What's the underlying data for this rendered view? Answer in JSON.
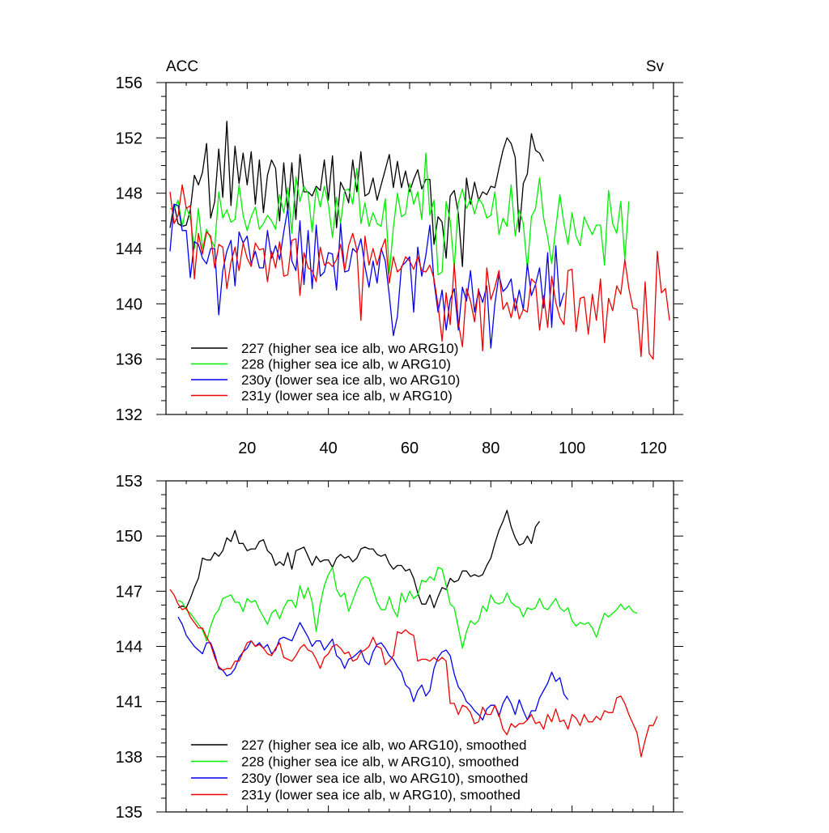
{
  "chart_data": [
    {
      "type": "line",
      "title": "",
      "left_label": "ACC",
      "right_label": "Sv",
      "xlabel": "",
      "ylabel": "",
      "xlim": [
        0,
        125
      ],
      "ylim": [
        132,
        156
      ],
      "xticks": [
        20,
        40,
        60,
        80,
        100,
        120
      ],
      "xtick_labels": [
        "20",
        "40",
        "60",
        "80",
        "100",
        "120"
      ],
      "yticks": [
        132,
        136,
        140,
        144,
        148,
        152,
        156
      ],
      "ytick_labels": [
        "132",
        "136",
        "140",
        "144",
        "148",
        "152",
        "156"
      ],
      "grid": false,
      "legend_position": "bottom-left",
      "series": [
        {
          "name": "227 (higher sea ice alb, wo ARG10)",
          "color": "#000000",
          "x_start": 1,
          "values": [
            145.5,
            147.2,
            145.8,
            145.6,
            145.7,
            146.8,
            149.3,
            148.6,
            149.5,
            151.6,
            146.2,
            147.4,
            151.2,
            147.7,
            153.2,
            147.1,
            151.4,
            148.7,
            150.9,
            148.6,
            151.0,
            147.2,
            150.4,
            146.6,
            149.3,
            150.4,
            149.8,
            146.0,
            150.2,
            146.7,
            150.2,
            146.1,
            150.8,
            148.1,
            148.1,
            147.8,
            148.5,
            148.2,
            150.4,
            147.5,
            150.7,
            145.5,
            148.8,
            148.2,
            147.3,
            150.4,
            148.1,
            151.0,
            147.8,
            148.0,
            149.1,
            147.5,
            148.6,
            149.7,
            150.8,
            148.4,
            150.3,
            148.4,
            149.6,
            148.1,
            149.0,
            149.7,
            148.3,
            149.0,
            149.0,
            144.3,
            146.3,
            145.9,
            143.3,
            147.8,
            148.2,
            146.5,
            142.7,
            149.1,
            147.2,
            148.8,
            147.5,
            148.1,
            147.9,
            148.5,
            148.4,
            149.8,
            151.1,
            152.0,
            151.6,
            150.6,
            145.2,
            148.7,
            149.4,
            152.3,
            151.1,
            150.9,
            150.3
          ]
        },
        {
          "name": "228 (higher sea ice alb, w ARG10)",
          "color": "#00ee00",
          "x_start": 1,
          "values": [
            146.9,
            146.8,
            147.5,
            145.6,
            147.0,
            146.2,
            144.0,
            146.9,
            144.0,
            145.4,
            144.7,
            144.1,
            148.1,
            146.2,
            146.8,
            145.9,
            146.1,
            148.6,
            146.4,
            145.3,
            146.3,
            147.0,
            145.4,
            145.8,
            146.4,
            146.0,
            145.4,
            147.9,
            146.6,
            148.4,
            145.1,
            149.2,
            147.4,
            148.5,
            148.0,
            145.2,
            148.4,
            147.0,
            148.5,
            147.2,
            144.8,
            147.7,
            145.8,
            148.2,
            148.3,
            147.2,
            149.8,
            145.8,
            147.3,
            145.6,
            146.6,
            145.8,
            145.6,
            147.6,
            142.2,
            145.5,
            148.0,
            146.3,
            146.5,
            148.7,
            147.2,
            148.1,
            146.1,
            150.9,
            146.4,
            147.5,
            142.1,
            142.3,
            147.4,
            146.0,
            142.6,
            147.3,
            148.3,
            146.9,
            147.6,
            146.5,
            147.6,
            147.2,
            146.2,
            146.4,
            148.1,
            145.0,
            146.2,
            145.6,
            148.6,
            144.9,
            146.8,
            145.8,
            142.5,
            146.3,
            146.9,
            149.1,
            146.2,
            144.8,
            142.9,
            145.5,
            147.9,
            145.8,
            144.3,
            146.6,
            144.9,
            144.2,
            146.3,
            145.6,
            145.0,
            145.7,
            145.7,
            142.8,
            148.2,
            145.8,
            145.1,
            147.4,
            143.2,
            147.4
          ]
        },
        {
          "name": "230y (lower sea ice alb, wo ARG10)",
          "color": "#0000ee",
          "x_start": 1,
          "values": [
            143.8,
            147.2,
            147.1,
            145.3,
            145.3,
            141.9,
            144.5,
            144.3,
            143.3,
            142.9,
            144.0,
            144.0,
            139.2,
            142.4,
            143.8,
            144.6,
            141.3,
            145.2,
            144.4,
            144.9,
            142.9,
            143.8,
            142.6,
            142.6,
            145.3,
            143.3,
            144.2,
            143.2,
            145.2,
            146.9,
            143.1,
            142.4,
            146.0,
            141.4,
            145.3,
            141.1,
            145.7,
            142.0,
            142.3,
            143.7,
            143.6,
            141.0,
            145.8,
            142.3,
            142.4,
            144.0,
            143.7,
            144.7,
            142.7,
            141.2,
            143.1,
            141.5,
            144.0,
            143.1,
            140.6,
            137.7,
            139.1,
            142.7,
            143.0,
            143.4,
            139.4,
            144.1,
            142.0,
            143.5,
            145.7,
            141.6,
            139.4,
            141.0,
            138.1,
            140.3,
            141.1,
            138.1,
            141.2,
            140.2,
            142.4,
            139.4,
            141.0,
            140.1,
            141.3,
            136.8,
            140.0,
            142.1,
            140.9,
            141.2,
            141.8,
            139.5,
            141.0,
            139.6,
            142.9,
            140.6,
            141.4,
            142.6,
            139.7,
            143.7,
            138.3,
            144.2,
            139.8,
            140.8
          ]
        },
        {
          "name": "231y (lower sea ice alb, w ARG10)",
          "color": "#ee0000",
          "x_start": 1,
          "values": [
            148.1,
            145.8,
            146.4,
            148.6,
            146.9,
            147.1,
            141.8,
            145.1,
            143.6,
            145.2,
            144.9,
            142.6,
            144.3,
            144.1,
            141.1,
            143.0,
            144.1,
            142.4,
            144.4,
            143.3,
            142.7,
            144.4,
            143.9,
            144.0,
            141.6,
            143.8,
            142.6,
            144.5,
            142.0,
            142.1,
            144.6,
            144.7,
            140.6,
            143.7,
            142.6,
            142.4,
            141.6,
            144.1,
            142.8,
            143.0,
            142.7,
            143.2,
            144.3,
            142.4,
            144.2,
            145.1,
            143.9,
            138.8,
            144.9,
            142.8,
            144.0,
            142.8,
            143.9,
            144.7,
            141.5,
            143.4,
            142.3,
            142.6,
            143.4,
            143.1,
            142.5,
            143.4,
            142.4,
            142.3,
            142.8,
            141.8,
            139.9,
            137.3,
            140.8,
            138.5,
            142.9,
            138.6,
            136.9,
            141.1,
            140.2,
            138.7,
            141.1,
            136.6,
            142.6,
            140.3,
            141.2,
            142.4,
            139.6,
            140.1,
            139.0,
            140.4,
            138.9,
            139.6,
            139.4,
            141.8,
            141.5,
            138.1,
            140.6,
            138.3,
            142.0,
            140.1,
            139.0,
            138.5,
            142.4,
            142.5,
            138.0,
            140.4,
            140.5,
            137.8,
            140.7,
            138.8,
            141.8,
            137.2,
            140.4,
            139.5,
            141.3,
            140.7,
            143.2,
            141.1,
            139.7,
            139.6,
            136.2,
            141.6,
            136.4,
            136.0,
            143.8,
            140.8,
            141.1,
            138.8
          ]
        }
      ]
    },
    {
      "type": "line",
      "title": "",
      "xlabel": "",
      "ylabel": "",
      "xlim": [
        0,
        125
      ],
      "ylim": [
        135,
        153
      ],
      "xticks": [
        20,
        40,
        60,
        80,
        100,
        120
      ],
      "yticks": [
        135,
        138,
        141,
        144,
        147,
        150,
        153
      ],
      "ytick_labels": [
        "135",
        "138",
        "141",
        "144",
        "147",
        "150",
        "153"
      ],
      "grid": false,
      "legend_position": "bottom-left",
      "series": [
        {
          "name": "227 (higher sea ice alb, wo ARG10), smoothed",
          "color": "#000000",
          "x_start": 3,
          "values": [
            146.1,
            146.2,
            146.1,
            146.6,
            147.2,
            147.7,
            148.8,
            148.7,
            148.7,
            149.1,
            148.9,
            149.2,
            149.9,
            149.7,
            150.3,
            149.6,
            149.6,
            149.2,
            149.3,
            149.3,
            149.7,
            149.8,
            149.2,
            149.0,
            148.4,
            148.6,
            148.4,
            149.1,
            148.2,
            149.2,
            149.3,
            149.4,
            148.9,
            148.4,
            148.9,
            148.6,
            148.7,
            148.7,
            148.3,
            148.8,
            149.0,
            148.8,
            148.9,
            148.6,
            148.8,
            149.3,
            149.4,
            149.3,
            149.3,
            149.0,
            148.9,
            149.0,
            148.5,
            148.2,
            148.4,
            148.4,
            148.1,
            148.2,
            147.7,
            146.9,
            146.3,
            146.3,
            146.8,
            146.1,
            146.7,
            147.2,
            147.1,
            147.7,
            147.5,
            147.6,
            148.1,
            148.1,
            147.8,
            147.9,
            147.8,
            147.9,
            148.4,
            148.8,
            149.6,
            150.3,
            150.8,
            151.4,
            150.5,
            149.9,
            149.5,
            149.6,
            150.0,
            149.6,
            150.5,
            150.8
          ]
        },
        {
          "name": "228 (higher sea ice alb, w ARG10), smoothed",
          "color": "#00ee00",
          "x_start": 3,
          "values": [
            146.5,
            146.4,
            146.0,
            145.8,
            145.5,
            145.2,
            144.9,
            144.3,
            145.1,
            145.7,
            146.0,
            146.6,
            146.7,
            146.8,
            146.4,
            146.4,
            145.9,
            146.6,
            146.4,
            146.5,
            146.0,
            145.6,
            145.2,
            145.8,
            146.0,
            145.5,
            146.1,
            146.5,
            146.5,
            146.1,
            147.3,
            146.6,
            147.2,
            146.4,
            144.8,
            146.3,
            147.3,
            147.9,
            148.3,
            147.1,
            146.7,
            146.9,
            145.9,
            146.5,
            147.1,
            147.6,
            147.8,
            147.7,
            147.1,
            146.4,
            146.0,
            146.0,
            146.7,
            146.0,
            145.6,
            146.9,
            146.4,
            147.0,
            146.6,
            146.8,
            147.6,
            147.5,
            147.8,
            147.6,
            148.3,
            148.2,
            147.3,
            146.3,
            146.1,
            145.0,
            143.9,
            144.8,
            145.4,
            145.2,
            145.4,
            146.2,
            145.9,
            146.8,
            146.4,
            146.3,
            146.4,
            146.9,
            146.4,
            146.2,
            146.1,
            145.6,
            146.1,
            146.0,
            146.1,
            146.6,
            146.1,
            146.0,
            146.3,
            146.6,
            146.1,
            145.9,
            146.1,
            145.4,
            145.1,
            145.3,
            145.2,
            145.3,
            145.0,
            144.5,
            145.2,
            145.8,
            145.6,
            145.8,
            146.0,
            146.3,
            146.0,
            146.2,
            145.9,
            145.8
          ]
        },
        {
          "name": "230y (lower sea ice alb, wo ARG10), smoothed",
          "color": "#0000ee",
          "x_start": 3,
          "values": [
            145.6,
            145.2,
            144.6,
            144.3,
            144.0,
            143.8,
            143.6,
            144.2,
            144.2,
            143.6,
            142.8,
            142.7,
            142.4,
            142.5,
            142.8,
            143.4,
            143.7,
            143.9,
            144.3,
            144.0,
            144.2,
            143.9,
            144.1,
            143.6,
            143.8,
            144.4,
            144.5,
            144.4,
            144.3,
            144.8,
            145.3,
            144.9,
            144.5,
            144.0,
            144.3,
            144.3,
            143.8,
            144.1,
            144.4,
            143.5,
            143.3,
            142.8,
            143.3,
            143.4,
            143.6,
            143.8,
            143.2,
            143.0,
            143.7,
            144.1,
            144.2,
            143.9,
            143.5,
            143.3,
            142.9,
            142.6,
            141.9,
            141.7,
            141.0,
            141.6,
            141.9,
            141.3,
            141.6,
            142.8,
            143.4,
            143.7,
            143.8,
            143.5,
            142.5,
            141.8,
            141.5,
            141.0,
            140.8,
            140.5,
            140.3,
            140.0,
            140.6,
            140.8,
            140.8,
            140.2,
            140.9,
            141.3,
            140.9,
            140.3,
            141.1,
            140.5,
            140.0,
            140.5,
            140.5,
            141.2,
            141.6,
            142.0,
            142.6,
            142.1,
            142.3,
            141.4,
            141.1
          ]
        },
        {
          "name": "231y (lower sea ice alb, w ARG10), smoothed",
          "color": "#ee0000",
          "x_start": 1,
          "values": [
            147.1,
            146.8,
            146.3,
            146.0,
            146.1,
            145.6,
            145.3,
            145.0,
            145.0,
            144.5,
            144.1,
            143.4,
            142.9,
            142.7,
            142.8,
            142.8,
            143.2,
            143.2,
            143.7,
            144.2,
            144.3,
            144.0,
            144.1,
            143.9,
            143.6,
            143.5,
            143.9,
            144.2,
            143.4,
            143.3,
            143.2,
            143.5,
            143.9,
            144.1,
            143.8,
            143.7,
            143.3,
            142.8,
            143.4,
            143.6,
            144.0,
            144.1,
            143.9,
            143.6,
            143.7,
            143.2,
            143.3,
            143.7,
            143.8,
            144.0,
            144.5,
            144.0,
            143.9,
            143.0,
            143.2,
            143.5,
            144.8,
            144.7,
            144.9,
            144.7,
            144.6,
            143.2,
            143.3,
            143.3,
            143.2,
            143.4,
            143.2,
            143.4,
            143.2,
            140.9,
            140.9,
            140.3,
            140.8,
            140.7,
            140.4,
            139.8,
            139.9,
            140.7,
            140.3,
            140.3,
            140.8,
            140.3,
            139.5,
            139.2,
            139.8,
            139.6,
            139.8,
            139.8,
            140.0,
            140.3,
            139.8,
            139.9,
            139.5,
            140.3,
            139.9,
            140.6,
            139.9,
            140.0,
            139.5,
            140.3,
            140.1,
            139.7,
            140.3,
            139.9,
            139.9,
            140.2,
            140.0,
            140.5,
            140.4,
            140.4,
            141.2,
            141.3,
            140.9,
            140.3,
            139.8,
            139.3,
            138.0,
            138.9,
            139.7,
            139.7,
            140.2
          ]
        }
      ]
    }
  ]
}
